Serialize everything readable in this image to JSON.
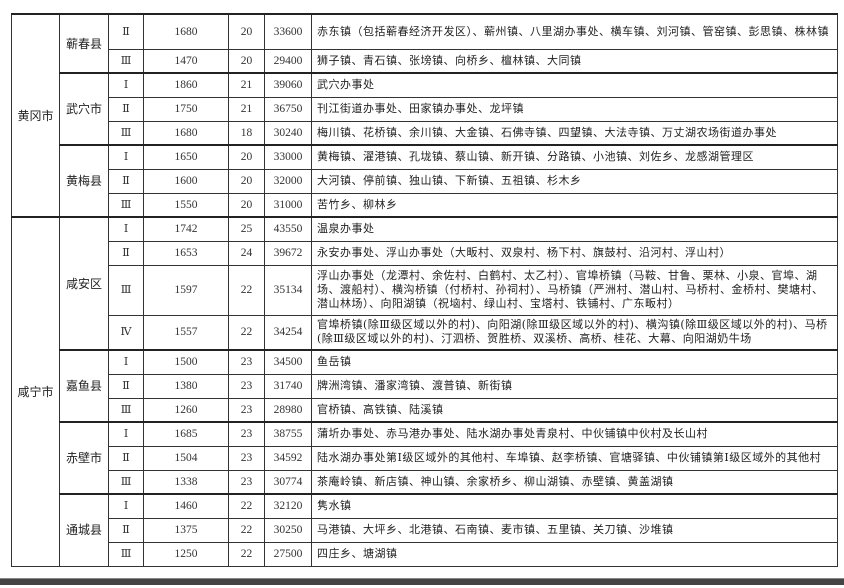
{
  "table": {
    "cities": [
      {
        "name": "黄冈市",
        "counties": [
          {
            "name": "蕲春县",
            "rows": [
              {
                "grade": "Ⅱ",
                "v1": "1680",
                "v2": "20",
                "v3": "33600",
                "areas": "赤东镇（包括蕲春经济开发区）、蕲州镇、八里湖办事处、横车镇、刘河镇、管窑镇、彭思镇、株林镇",
                "lines": 2
              },
              {
                "grade": "Ⅲ",
                "v1": "1470",
                "v2": "20",
                "v3": "29400",
                "areas": "狮子镇、青石镇、张塝镇、向桥乡、檀林镇、大同镇",
                "lines": 1
              }
            ]
          },
          {
            "name": "武穴市",
            "rows": [
              {
                "grade": "Ⅰ",
                "v1": "1860",
                "v2": "21",
                "v3": "39060",
                "areas": "武穴办事处",
                "lines": 1
              },
              {
                "grade": "Ⅱ",
                "v1": "1750",
                "v2": "21",
                "v3": "36750",
                "areas": "刊江街道办事处、田家镇办事处、龙坪镇",
                "lines": 1
              },
              {
                "grade": "Ⅲ",
                "v1": "1680",
                "v2": "18",
                "v3": "30240",
                "areas": "梅川镇、花桥镇、余川镇、大金镇、石佛寺镇、四望镇、大法寺镇、万丈湖农场街道办事处",
                "lines": 1
              }
            ]
          },
          {
            "name": "黄梅县",
            "rows": [
              {
                "grade": "Ⅰ",
                "v1": "1650",
                "v2": "20",
                "v3": "33000",
                "areas": "黄梅镇、濯港镇、孔垅镇、蔡山镇、新开镇、分路镇、小池镇、刘佐乡、龙感湖管理区",
                "lines": 1
              },
              {
                "grade": "Ⅱ",
                "v1": "1600",
                "v2": "20",
                "v3": "32000",
                "areas": "大河镇、停前镇、独山镇、下新镇、五祖镇、杉木乡",
                "lines": 1
              },
              {
                "grade": "Ⅲ",
                "v1": "1550",
                "v2": "20",
                "v3": "31000",
                "areas": "苦竹乡、柳林乡",
                "lines": 1
              }
            ]
          }
        ]
      },
      {
        "name": "咸宁市",
        "counties": [
          {
            "name": "咸安区",
            "rows": [
              {
                "grade": "Ⅰ",
                "v1": "1742",
                "v2": "25",
                "v3": "43550",
                "areas": "温泉办事处",
                "lines": 1
              },
              {
                "grade": "Ⅱ",
                "v1": "1653",
                "v2": "24",
                "v3": "39672",
                "areas": "永安办事处、浮山办事处（大畈村、双泉村、杨下村、旗鼓村、沿河村、浮山村）",
                "lines": 1
              },
              {
                "grade": "Ⅲ",
                "v1": "1597",
                "v2": "22",
                "v3": "35134",
                "areas": "浮山办事处（龙潭村、余佐村、白鹤村、太乙村）、官埠桥镇（马鞍、甘鲁、栗林、小泉、官埠、湖场、渡船村）、横沟桥镇（付桥村、孙祠村）、马桥镇（严洲村、潜山村、马桥村、金桥村、樊塘村、潜山林场）、向阳湖镇（祝垴村、绿山村、宝塔村、铁铺村、广东畈村）",
                "lines": 3
              },
              {
                "grade": "Ⅳ",
                "v1": "1557",
                "v2": "22",
                "v3": "34254",
                "areas": "官埠桥镇(除Ⅲ级区域以外的村)、向阳湖(除Ⅲ级区域以外的村)、横沟镇(除Ⅲ级区域以外的村)、马桥(除Ⅲ级区域以外的村)、汀泗桥、贺胜桥、双溪桥、高桥、桂花、大幕、向阳湖奶牛场",
                "lines": 2
              }
            ]
          },
          {
            "name": "嘉鱼县",
            "rows": [
              {
                "grade": "Ⅰ",
                "v1": "1500",
                "v2": "23",
                "v3": "34500",
                "areas": "鱼岳镇",
                "lines": 1
              },
              {
                "grade": "Ⅱ",
                "v1": "1380",
                "v2": "23",
                "v3": "31740",
                "areas": "牌洲湾镇、潘家湾镇、渡普镇、新街镇",
                "lines": 1
              },
              {
                "grade": "Ⅲ",
                "v1": "1260",
                "v2": "23",
                "v3": "28980",
                "areas": "官桥镇、高铁镇、陆溪镇",
                "lines": 1
              }
            ]
          },
          {
            "name": "赤壁市",
            "rows": [
              {
                "grade": "Ⅰ",
                "v1": "1685",
                "v2": "23",
                "v3": "38755",
                "areas": "蒲圻办事处、赤马港办事处、陆水湖办事处青泉村、中伙铺镇中伙村及长山村",
                "lines": 1
              },
              {
                "grade": "Ⅱ",
                "v1": "1504",
                "v2": "23",
                "v3": "34592",
                "areas": "陆水湖办事处第Ⅰ级区域外的其他村、车埠镇、赵李桥镇、官塘驿镇、中伙铺镇第Ⅰ级区域外的其他村",
                "lines": 1
              },
              {
                "grade": "Ⅲ",
                "v1": "1338",
                "v2": "23",
                "v3": "30774",
                "areas": "茶庵岭镇、新店镇、神山镇、余家桥乡、柳山湖镇、赤壁镇、黄盖湖镇",
                "lines": 1
              }
            ]
          },
          {
            "name": "通城县",
            "rows": [
              {
                "grade": "Ⅰ",
                "v1": "1460",
                "v2": "22",
                "v3": "32120",
                "areas": "隽水镇",
                "lines": 1
              },
              {
                "grade": "Ⅱ",
                "v1": "1375",
                "v2": "22",
                "v3": "30250",
                "areas": "马港镇、大坪乡、北港镇、石南镇、麦市镇、五里镇、关刀镇、沙堆镇",
                "lines": 1
              },
              {
                "grade": "Ⅲ",
                "v1": "1250",
                "v2": "22",
                "v3": "27500",
                "areas": "四庄乡、塘湖镇",
                "lines": 1
              }
            ]
          }
        ]
      }
    ]
  }
}
